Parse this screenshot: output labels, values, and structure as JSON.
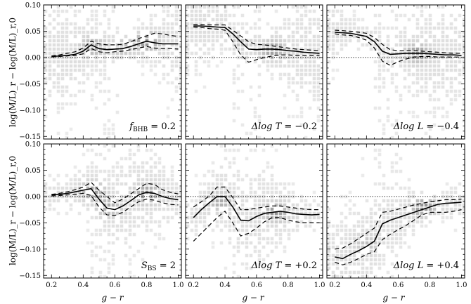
{
  "figure": {
    "ylabel": "log(M/L)_r − log(M/L)_r,0",
    "xlabel": "g − r",
    "yticks": [
      "0.10",
      "0.05",
      "0.00",
      "−0.05",
      "−0.10",
      "−0.15"
    ],
    "xticks": [
      "0.2",
      "0.4",
      "0.6",
      "0.8",
      "1.0"
    ]
  },
  "chart_data": [
    {
      "type": "line",
      "annotation": "f_BHB = 0.2",
      "ann_sym": "f",
      "ann_sub": "BHB",
      "ann_rest": " = 0.2",
      "xlim": [
        0.15,
        1.02
      ],
      "ylim": [
        -0.155,
        0.1
      ],
      "x": [
        0.2,
        0.25,
        0.3,
        0.35,
        0.4,
        0.45,
        0.5,
        0.55,
        0.6,
        0.65,
        0.7,
        0.75,
        0.8,
        0.85,
        0.9,
        0.95,
        1.0
      ],
      "median": [
        0.002,
        0.003,
        0.004,
        0.006,
        0.012,
        0.024,
        0.017,
        0.015,
        0.016,
        0.017,
        0.021,
        0.026,
        0.031,
        0.028,
        0.026,
        0.026,
        0.026
      ],
      "upper": [
        0.003,
        0.005,
        0.008,
        0.011,
        0.018,
        0.031,
        0.026,
        0.024,
        0.024,
        0.025,
        0.03,
        0.036,
        0.041,
        0.046,
        0.045,
        0.042,
        0.04
      ],
      "lower": [
        0.001,
        0.002,
        0.003,
        0.004,
        0.007,
        0.017,
        0.011,
        0.009,
        0.011,
        0.012,
        0.015,
        0.018,
        0.021,
        0.018,
        0.017,
        0.017,
        0.016
      ],
      "reference_line": 0.0,
      "density": [
        {
          "x": 0.46,
          "y": 0.02,
          "amp": 0.4
        },
        {
          "x": 0.8,
          "y": 0.03,
          "amp": 0.55
        },
        {
          "x": 0.65,
          "y": 0.02,
          "amp": 0.25
        }
      ]
    },
    {
      "type": "line",
      "annotation": "Δlog T = −0.2",
      "ann_sym": "Δlog T",
      "ann_sub": "",
      "ann_rest": " = −0.2",
      "xlim": [
        0.15,
        1.02
      ],
      "ylim": [
        -0.155,
        0.1
      ],
      "x": [
        0.2,
        0.25,
        0.3,
        0.35,
        0.4,
        0.45,
        0.5,
        0.55,
        0.6,
        0.65,
        0.7,
        0.75,
        0.8,
        0.85,
        0.9,
        0.95,
        1.0
      ],
      "median": [
        0.06,
        0.06,
        0.059,
        0.058,
        0.057,
        0.045,
        0.03,
        0.016,
        0.015,
        0.016,
        0.016,
        0.015,
        0.013,
        0.012,
        0.01,
        0.009,
        0.008
      ],
      "upper": [
        0.063,
        0.063,
        0.062,
        0.062,
        0.062,
        0.052,
        0.041,
        0.03,
        0.025,
        0.024,
        0.022,
        0.02,
        0.018,
        0.016,
        0.015,
        0.014,
        0.013
      ],
      "lower": [
        0.058,
        0.057,
        0.055,
        0.054,
        0.052,
        0.03,
        0.005,
        -0.009,
        -0.004,
        0.0,
        0.003,
        0.005,
        0.005,
        0.004,
        0.004,
        0.004,
        0.004
      ],
      "reference_line": 0.0,
      "density": [
        {
          "x": 0.7,
          "y": 0.015,
          "amp": 0.5
        },
        {
          "x": 0.5,
          "y": 0.03,
          "amp": 0.2
        }
      ]
    },
    {
      "type": "line",
      "annotation": "Δlog L = −0.4",
      "ann_sym": "Δlog L",
      "ann_sub": "",
      "ann_rest": " = −0.4",
      "xlim": [
        0.15,
        1.02
      ],
      "ylim": [
        -0.155,
        0.1
      ],
      "x": [
        0.2,
        0.25,
        0.3,
        0.35,
        0.4,
        0.45,
        0.5,
        0.55,
        0.6,
        0.65,
        0.7,
        0.75,
        0.8,
        0.85,
        0.9,
        0.95,
        1.0
      ],
      "median": [
        0.048,
        0.047,
        0.046,
        0.043,
        0.04,
        0.03,
        0.012,
        0.006,
        0.007,
        0.008,
        0.008,
        0.008,
        0.007,
        0.006,
        0.005,
        0.005,
        0.004
      ],
      "upper": [
        0.052,
        0.051,
        0.05,
        0.048,
        0.046,
        0.038,
        0.025,
        0.015,
        0.013,
        0.013,
        0.013,
        0.012,
        0.011,
        0.01,
        0.009,
        0.008,
        0.008
      ],
      "lower": [
        0.045,
        0.043,
        0.042,
        0.038,
        0.033,
        0.018,
        -0.007,
        -0.015,
        -0.008,
        -0.003,
        0.001,
        0.002,
        0.002,
        0.001,
        0.001,
        0.001,
        0.001
      ],
      "reference_line": 0.0,
      "density": [
        {
          "x": 0.72,
          "y": 0.008,
          "amp": 0.5
        }
      ]
    },
    {
      "type": "line",
      "annotation": "S_BS = 2",
      "ann_sym": "S",
      "ann_sub": "BS",
      "ann_rest": " = 2",
      "xlim": [
        0.15,
        1.02
      ],
      "ylim": [
        -0.155,
        0.1
      ],
      "x": [
        0.2,
        0.25,
        0.3,
        0.35,
        0.4,
        0.45,
        0.5,
        0.55,
        0.6,
        0.65,
        0.7,
        0.75,
        0.8,
        0.85,
        0.9,
        0.95,
        1.0
      ],
      "median": [
        0.003,
        0.004,
        0.006,
        0.009,
        0.012,
        0.015,
        -0.005,
        -0.022,
        -0.025,
        -0.018,
        -0.008,
        0.003,
        0.008,
        0.006,
        0.0,
        -0.004,
        -0.006
      ],
      "upper": [
        0.004,
        0.006,
        0.009,
        0.013,
        0.018,
        0.027,
        0.012,
        0.0,
        -0.012,
        -0.005,
        0.005,
        0.015,
        0.025,
        0.023,
        0.013,
        0.008,
        0.005
      ],
      "lower": [
        0.001,
        0.002,
        0.003,
        0.004,
        0.006,
        0.002,
        -0.02,
        -0.035,
        -0.036,
        -0.03,
        -0.02,
        -0.01,
        -0.005,
        -0.007,
        -0.012,
        -0.015,
        -0.016
      ],
      "reference_line": 0.0,
      "density": [
        {
          "x": 0.46,
          "y": 0.01,
          "amp": 0.45
        },
        {
          "x": 0.56,
          "y": -0.02,
          "amp": 0.35
        },
        {
          "x": 0.8,
          "y": 0.005,
          "amp": 0.55
        }
      ]
    },
    {
      "type": "line",
      "annotation": "Δlog T = +0.2",
      "ann_sym": "Δlog T",
      "ann_sub": "",
      "ann_rest": " = +0.2",
      "xlim": [
        0.15,
        1.02
      ],
      "ylim": [
        -0.155,
        0.1
      ],
      "x": [
        0.2,
        0.25,
        0.3,
        0.35,
        0.4,
        0.45,
        0.5,
        0.55,
        0.6,
        0.65,
        0.7,
        0.75,
        0.8,
        0.85,
        0.9,
        0.95,
        1.0
      ],
      "median": [
        -0.04,
        -0.025,
        -0.012,
        0.0,
        0.0,
        -0.02,
        -0.045,
        -0.046,
        -0.038,
        -0.032,
        -0.03,
        -0.028,
        -0.03,
        -0.033,
        -0.034,
        -0.035,
        -0.034
      ],
      "upper": [
        -0.02,
        -0.01,
        0.001,
        0.018,
        0.018,
        -0.002,
        -0.025,
        -0.025,
        -0.022,
        -0.02,
        -0.018,
        -0.018,
        -0.02,
        -0.022,
        -0.024,
        -0.025,
        -0.025
      ],
      "lower": [
        -0.085,
        -0.07,
        -0.055,
        -0.04,
        -0.028,
        -0.05,
        -0.075,
        -0.07,
        -0.06,
        -0.048,
        -0.04,
        -0.04,
        -0.045,
        -0.048,
        -0.05,
        -0.05,
        -0.05
      ],
      "reference_line": 0.0,
      "density": [
        {
          "x": 0.37,
          "y": -0.01,
          "amp": 0.35
        },
        {
          "x": 0.72,
          "y": -0.03,
          "amp": 0.5
        }
      ]
    },
    {
      "type": "line",
      "annotation": "Δlog L = +0.4",
      "ann_sym": "Δlog L",
      "ann_sub": "",
      "ann_rest": " = +0.4",
      "xlim": [
        0.15,
        1.02
      ],
      "ylim": [
        -0.155,
        0.1
      ],
      "x": [
        0.2,
        0.25,
        0.3,
        0.35,
        0.4,
        0.45,
        0.5,
        0.55,
        0.6,
        0.65,
        0.7,
        0.75,
        0.8,
        0.85,
        0.9,
        0.95,
        1.0
      ],
      "median": [
        -0.115,
        -0.118,
        -0.11,
        -0.103,
        -0.095,
        -0.085,
        -0.052,
        -0.045,
        -0.04,
        -0.035,
        -0.03,
        -0.025,
        -0.02,
        -0.015,
        -0.013,
        -0.012,
        -0.011
      ],
      "upper": [
        -0.1,
        -0.098,
        -0.09,
        -0.08,
        -0.07,
        -0.06,
        -0.03,
        -0.028,
        -0.024,
        -0.02,
        -0.016,
        -0.013,
        -0.01,
        -0.008,
        -0.006,
        -0.006,
        -0.005
      ],
      "lower": [
        -0.125,
        -0.13,
        -0.125,
        -0.118,
        -0.11,
        -0.105,
        -0.082,
        -0.072,
        -0.063,
        -0.055,
        -0.045,
        -0.035,
        -0.03,
        -0.03,
        -0.03,
        -0.028,
        -0.025
      ],
      "reference_line": 0.0,
      "density": [
        {
          "x": 0.76,
          "y": -0.02,
          "amp": 0.55
        },
        {
          "x": 0.4,
          "y": -0.09,
          "amp": 0.2
        }
      ]
    }
  ]
}
